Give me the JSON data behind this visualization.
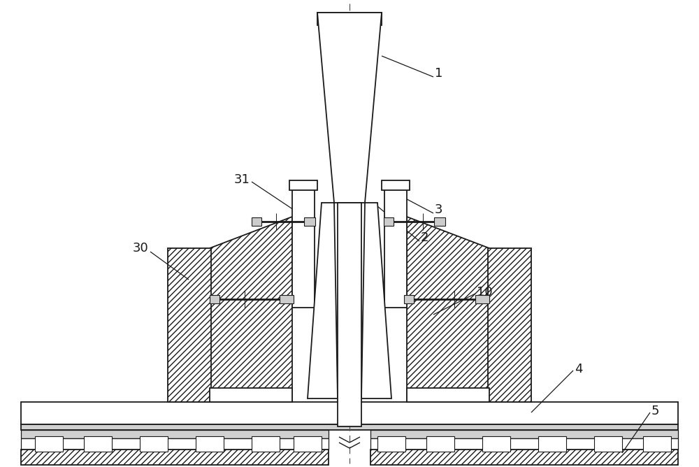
{
  "bg_color": "#ffffff",
  "line_color": "#1a1a1a",
  "fig_width": 10.0,
  "fig_height": 6.68,
  "dpi": 100
}
